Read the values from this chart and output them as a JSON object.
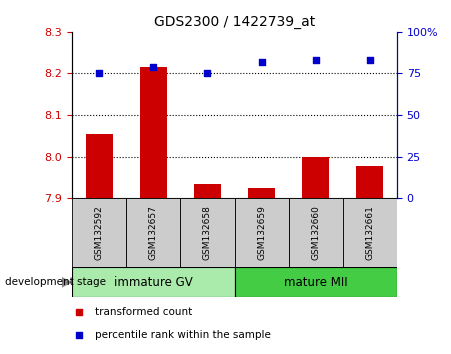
{
  "title": "GDS2300 / 1422739_at",
  "samples": [
    "GSM132592",
    "GSM132657",
    "GSM132658",
    "GSM132659",
    "GSM132660",
    "GSM132661"
  ],
  "bar_values": [
    8.055,
    8.215,
    7.935,
    7.925,
    7.998,
    7.978
  ],
  "bar_bottom": 7.9,
  "percentile_values": [
    75,
    79,
    75,
    82,
    83,
    83
  ],
  "ylim_left": [
    7.9,
    8.3
  ],
  "ylim_right": [
    0,
    100
  ],
  "yticks_left": [
    7.9,
    8.0,
    8.1,
    8.2,
    8.3
  ],
  "yticks_right": [
    0,
    25,
    50,
    75,
    100
  ],
  "bar_color": "#cc0000",
  "scatter_color": "#0000cc",
  "tick_color_left": "#cc0000",
  "tick_color_right": "#0000cc",
  "groups": [
    {
      "label": "immature GV",
      "samples_idx": [
        0,
        1,
        2
      ],
      "color": "#aaeaaa"
    },
    {
      "label": "mature MII",
      "samples_idx": [
        3,
        4,
        5
      ],
      "color": "#44cc44"
    }
  ],
  "dev_stage_label": "development stage",
  "legend_bar_label": "transformed count",
  "legend_scatter_label": "percentile rank within the sample",
  "sample_bg_color": "#cccccc",
  "gridline_y": [
    8.0,
    8.1,
    8.2
  ],
  "right_tick_labels": [
    "0",
    "25",
    "50",
    "75",
    "100%"
  ]
}
